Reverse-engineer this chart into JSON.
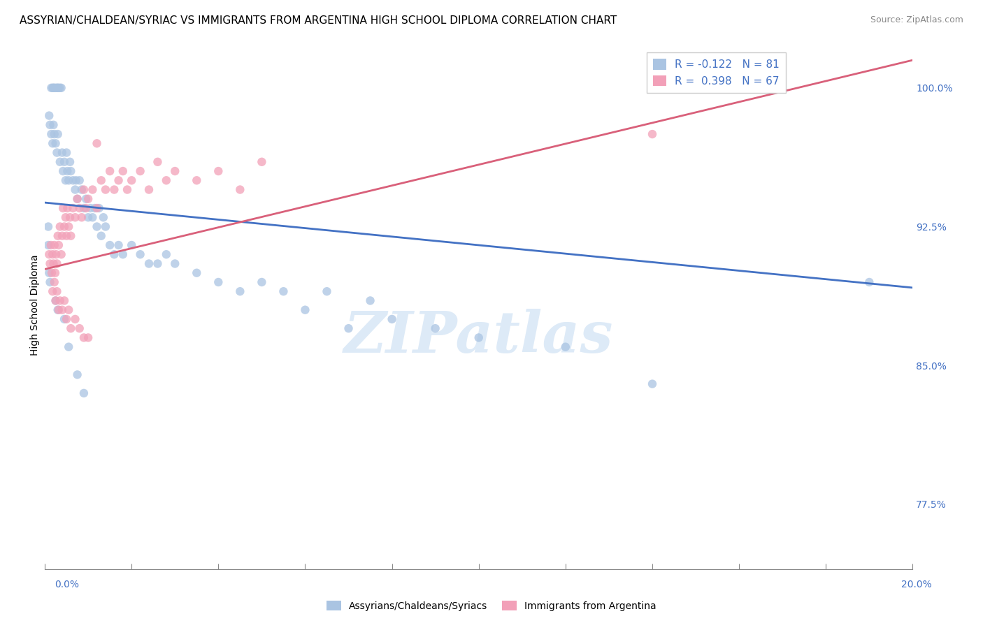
{
  "title": "ASSYRIAN/CHALDEAN/SYRIAC VS IMMIGRANTS FROM ARGENTINA HIGH SCHOOL DIPLOMA CORRELATION CHART",
  "source": "Source: ZipAtlas.com",
  "ylabel": "High School Diploma",
  "right_yticks": [
    77.5,
    85.0,
    92.5,
    100.0
  ],
  "right_ytick_labels": [
    "77.5%",
    "85.0%",
    "92.5%",
    "100.0%"
  ],
  "xlim": [
    0.0,
    20.0
  ],
  "ylim": [
    74.0,
    102.5
  ],
  "legend_blue_label": "R = -0.122   N = 81",
  "legend_pink_label": "R =  0.398   N = 67",
  "series1_label": "Assyrians/Chaldeans/Syriacs",
  "series2_label": "Immigrants from Argentina",
  "series1_color": "#aac4e2",
  "series2_color": "#f2a0b8",
  "blue_line_color": "#4472c4",
  "pink_line_color": "#d9607a",
  "watermark": "ZIPatlas",
  "watermark_color": "#ddeaf7",
  "title_fontsize": 11,
  "axis_label_fontsize": 10,
  "legend_fontsize": 11,
  "scatter_size": 80,
  "scatter_lw": 1.5,
  "grid_color": "#cccccc",
  "background_color": "#ffffff",
  "blue_trend_x0": 0.0,
  "blue_trend_x1": 20.0,
  "blue_trend_y0": 93.8,
  "blue_trend_y1": 89.2,
  "pink_trend_x0": 0.0,
  "pink_trend_x1": 20.0,
  "pink_trend_y0": 90.2,
  "pink_trend_y1": 101.5,
  "blue_x": [
    0.15,
    0.18,
    0.2,
    0.22,
    0.25,
    0.28,
    0.3,
    0.32,
    0.35,
    0.38,
    0.1,
    0.12,
    0.15,
    0.18,
    0.2,
    0.22,
    0.25,
    0.28,
    0.3,
    0.35,
    0.4,
    0.42,
    0.45,
    0.48,
    0.5,
    0.52,
    0.55,
    0.58,
    0.6,
    0.65,
    0.7,
    0.72,
    0.75,
    0.8,
    0.85,
    0.9,
    0.95,
    1.0,
    1.05,
    1.1,
    1.15,
    1.2,
    1.25,
    1.3,
    1.35,
    1.4,
    1.5,
    1.6,
    1.7,
    1.8,
    2.0,
    2.2,
    2.4,
    2.6,
    2.8,
    3.0,
    3.5,
    4.0,
    4.5,
    5.0,
    5.5,
    6.0,
    6.5,
    7.0,
    7.5,
    8.0,
    9.0,
    10.0,
    12.0,
    14.0,
    0.08,
    0.08,
    0.1,
    0.12,
    0.25,
    0.3,
    0.45,
    0.55,
    0.75,
    0.9,
    19.0
  ],
  "blue_y": [
    100.0,
    100.0,
    100.0,
    100.0,
    100.0,
    100.0,
    100.0,
    100.0,
    100.0,
    100.0,
    98.5,
    98.0,
    97.5,
    97.0,
    98.0,
    97.5,
    97.0,
    96.5,
    97.5,
    96.0,
    96.5,
    95.5,
    96.0,
    95.0,
    96.5,
    95.5,
    95.0,
    96.0,
    95.5,
    95.0,
    94.5,
    95.0,
    94.0,
    95.0,
    94.5,
    93.5,
    94.0,
    93.0,
    93.5,
    93.0,
    93.5,
    92.5,
    93.5,
    92.0,
    93.0,
    92.5,
    91.5,
    91.0,
    91.5,
    91.0,
    91.5,
    91.0,
    90.5,
    90.5,
    91.0,
    90.5,
    90.0,
    89.5,
    89.0,
    89.5,
    89.0,
    88.0,
    89.0,
    87.0,
    88.5,
    87.5,
    87.0,
    86.5,
    86.0,
    84.0,
    92.5,
    91.5,
    90.0,
    89.5,
    88.5,
    88.0,
    87.5,
    86.0,
    84.5,
    83.5,
    89.5
  ],
  "pink_x": [
    0.1,
    0.12,
    0.14,
    0.16,
    0.18,
    0.2,
    0.22,
    0.24,
    0.26,
    0.28,
    0.3,
    0.32,
    0.35,
    0.38,
    0.4,
    0.42,
    0.45,
    0.48,
    0.5,
    0.52,
    0.55,
    0.58,
    0.6,
    0.65,
    0.7,
    0.75,
    0.8,
    0.85,
    0.9,
    0.95,
    1.0,
    1.1,
    1.2,
    1.3,
    1.4,
    1.5,
    1.6,
    1.7,
    1.8,
    1.9,
    2.0,
    2.2,
    2.4,
    2.6,
    2.8,
    3.0,
    3.5,
    4.0,
    4.5,
    5.0,
    0.18,
    0.22,
    0.25,
    0.28,
    0.32,
    0.35,
    0.4,
    0.45,
    0.5,
    0.55,
    0.6,
    0.7,
    0.8,
    0.9,
    1.0,
    1.2,
    14.0
  ],
  "pink_y": [
    91.0,
    90.5,
    91.5,
    90.0,
    91.0,
    90.5,
    91.5,
    90.0,
    91.0,
    90.5,
    92.0,
    91.5,
    92.5,
    91.0,
    92.0,
    93.5,
    92.5,
    93.0,
    92.0,
    93.5,
    92.5,
    93.0,
    92.0,
    93.5,
    93.0,
    94.0,
    93.5,
    93.0,
    94.5,
    93.5,
    94.0,
    94.5,
    93.5,
    95.0,
    94.5,
    95.5,
    94.5,
    95.0,
    95.5,
    94.5,
    95.0,
    95.5,
    94.5,
    96.0,
    95.0,
    95.5,
    95.0,
    95.5,
    94.5,
    96.0,
    89.0,
    89.5,
    88.5,
    89.0,
    88.0,
    88.5,
    88.0,
    88.5,
    87.5,
    88.0,
    87.0,
    87.5,
    87.0,
    86.5,
    86.5,
    97.0,
    97.5
  ]
}
